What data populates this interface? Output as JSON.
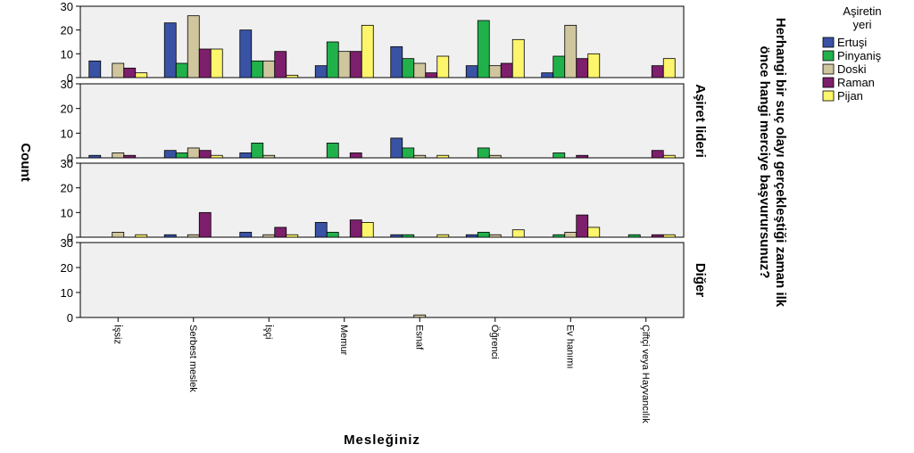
{
  "chart_data": {
    "type": "bar",
    "xlabel": "Mesleğiniz",
    "ylabel": "Count",
    "ylim": [
      0,
      30
    ],
    "yticks": [
      0,
      10,
      20,
      30
    ],
    "grid": false,
    "legend_position": "top-right",
    "legend_title": "Aşiretin yeri",
    "panel_axis_title": "Herhangi bir suç olayı gerçekleştiği zaman ilk önce hangi merciye başvurursunuz?",
    "categories": [
      "İşsiz",
      "Serbest meslek",
      "İşçi",
      "Memur",
      "Esnaf",
      "Öğrenci",
      "Ev hanımı",
      "Çiftçi veya Hayvancılık"
    ],
    "series": [
      {
        "name": "Ertuşi",
        "color": "#3952a4"
      },
      {
        "name": "Pinyaniş",
        "color": "#21b14b"
      },
      {
        "name": "Doski",
        "color": "#cfc69e"
      },
      {
        "name": "Raman",
        "color": "#7d1f6c"
      },
      {
        "name": "Pijan",
        "color": "#fdf56b"
      }
    ],
    "panels": [
      {
        "label": "",
        "values": [
          [
            7,
            0,
            6,
            4,
            2
          ],
          [
            23,
            6,
            26,
            12,
            12
          ],
          [
            20,
            7,
            7,
            11,
            1
          ],
          [
            5,
            15,
            11,
            11,
            22
          ],
          [
            13,
            8,
            6,
            2,
            9
          ],
          [
            5,
            24,
            5,
            6,
            16
          ],
          [
            2,
            9,
            22,
            8,
            10
          ],
          [
            0,
            0,
            0,
            5,
            8
          ]
        ]
      },
      {
        "label": "Aşiret lideri",
        "values": [
          [
            1,
            0,
            2,
            1,
            0
          ],
          [
            3,
            2,
            4,
            3,
            1
          ],
          [
            2,
            6,
            1,
            0,
            0
          ],
          [
            0,
            6,
            0,
            2,
            0
          ],
          [
            8,
            4,
            1,
            0,
            1
          ],
          [
            0,
            4,
            1,
            0,
            0
          ],
          [
            0,
            2,
            0,
            1,
            0
          ],
          [
            0,
            0,
            0,
            3,
            1
          ]
        ]
      },
      {
        "label": "",
        "values": [
          [
            0,
            0,
            2,
            0,
            1
          ],
          [
            1,
            0,
            1,
            10,
            0
          ],
          [
            2,
            0,
            1,
            4,
            1
          ],
          [
            6,
            2,
            0,
            7,
            6
          ],
          [
            1,
            1,
            0,
            0,
            1
          ],
          [
            1,
            2,
            1,
            0,
            3
          ],
          [
            0,
            1,
            2,
            9,
            4
          ],
          [
            0,
            1,
            0,
            1,
            1
          ]
        ]
      },
      {
        "label": "Diğer",
        "values": [
          [
            0,
            0,
            0,
            0,
            0
          ],
          [
            0,
            0,
            0,
            0,
            0
          ],
          [
            0,
            0,
            0,
            0,
            0
          ],
          [
            0,
            0,
            0,
            0,
            0
          ],
          [
            0,
            0,
            1,
            0,
            0
          ],
          [
            0,
            0,
            0,
            0,
            0
          ],
          [
            0,
            0,
            0,
            0,
            0
          ],
          [
            0,
            0,
            0,
            0,
            0
          ]
        ]
      }
    ]
  }
}
